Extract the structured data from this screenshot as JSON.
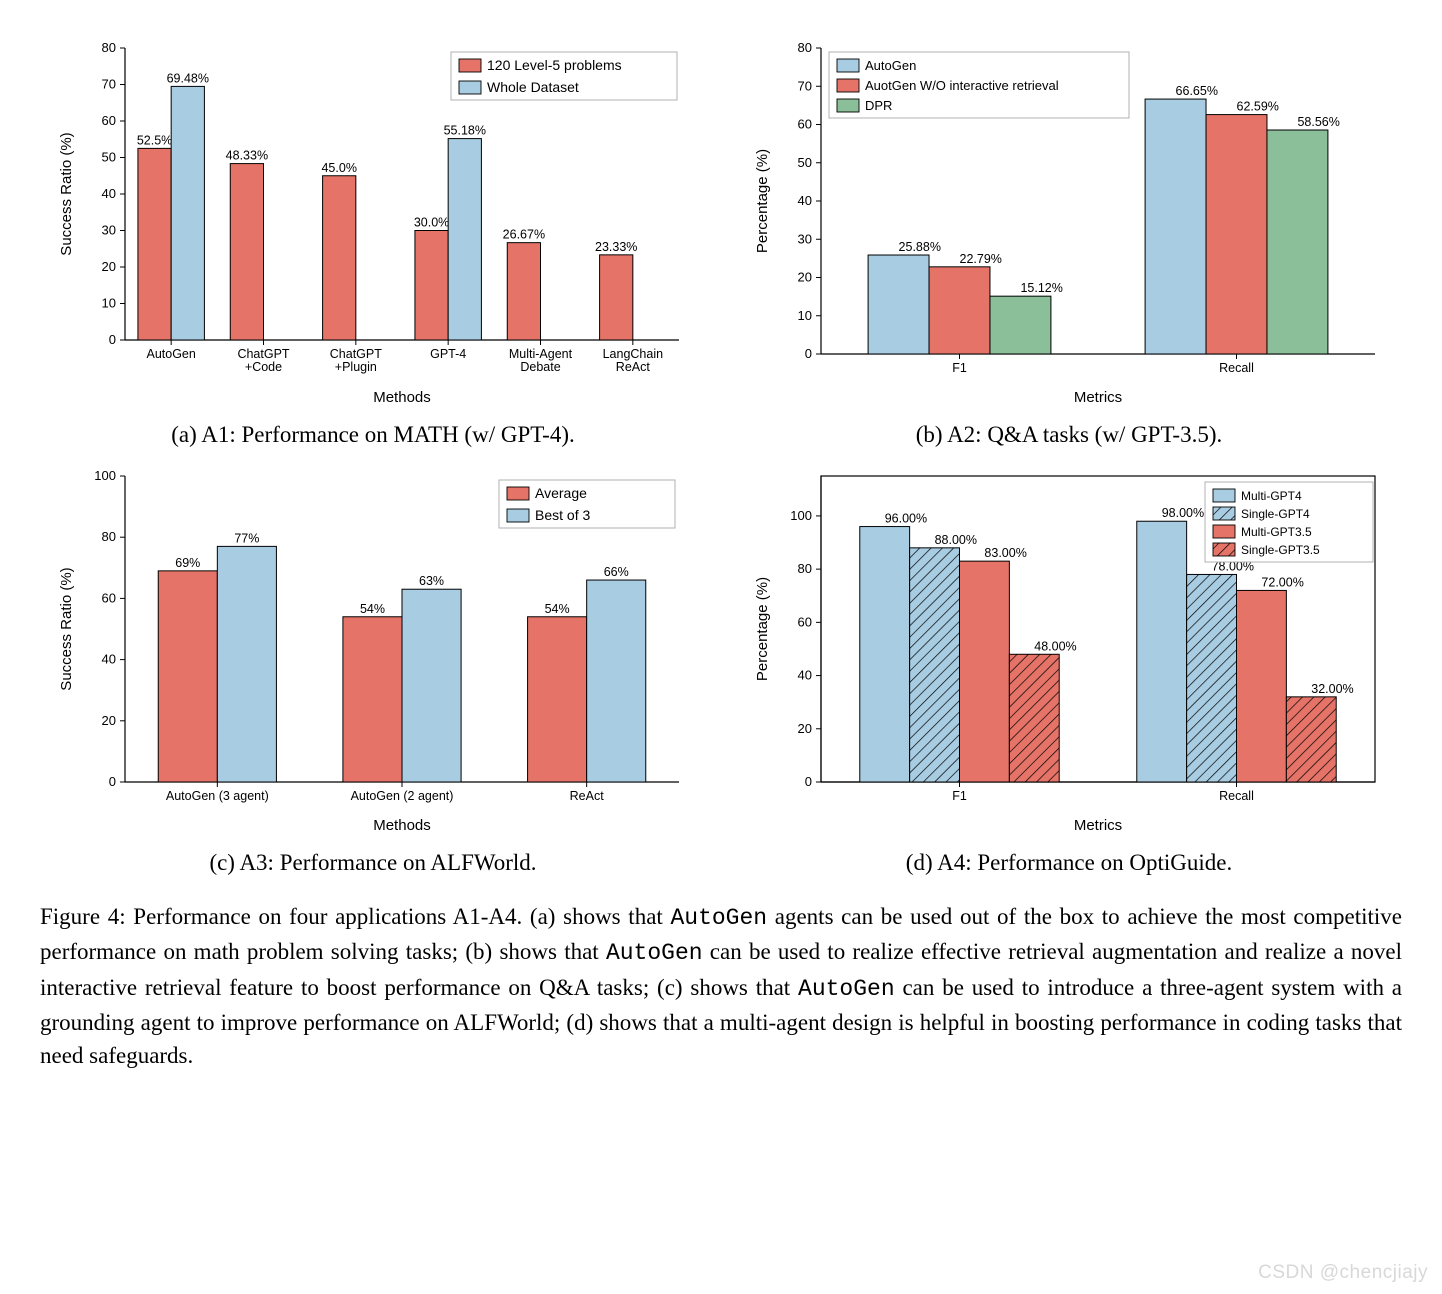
{
  "colors": {
    "red": "#e57368",
    "blue": "#a8cde2",
    "green": "#8bbf9a",
    "axis": "#000000",
    "text": "#000000"
  },
  "chartA": {
    "type": "bar",
    "xlabel": "Methods",
    "ylabel": "Success Ratio (%)",
    "ylim": [
      0,
      80
    ],
    "ytick_step": 10,
    "categories": [
      "AutoGen",
      "ChatGPT\n+Code",
      "ChatGPT\n+Plugin",
      "GPT-4",
      "Multi-Agent\nDebate",
      "LangChain\nReAct"
    ],
    "series": [
      {
        "name": "120 Level-5 problems",
        "color": "#e57368",
        "values": [
          52.5,
          48.33,
          45.0,
          30.0,
          26.67,
          23.33
        ],
        "labels": [
          "52.5%",
          "48.33%",
          "45.0%",
          "30.0%",
          "26.67%",
          "23.33%"
        ]
      },
      {
        "name": "Whole Dataset",
        "color": "#a8cde2",
        "values": [
          69.48,
          null,
          null,
          55.18,
          null,
          null
        ],
        "labels": [
          "69.48%",
          "",
          "",
          "55.18%",
          "",
          ""
        ]
      }
    ],
    "bar_width": 0.36,
    "label_fontsize": 12,
    "tick_fontsize": 11
  },
  "chartB": {
    "type": "bar",
    "xlabel": "Metrics",
    "ylabel": "Percentage (%)",
    "ylim": [
      0,
      80
    ],
    "ytick_step": 10,
    "categories": [
      "F1",
      "Recall"
    ],
    "series": [
      {
        "name": "AutoGen",
        "color": "#a8cde2",
        "values": [
          25.88,
          66.65
        ],
        "labels": [
          "25.88%",
          "66.65%"
        ]
      },
      {
        "name": "AuotGen W/O interactive retrieval",
        "color": "#e57368",
        "values": [
          22.79,
          62.59
        ],
        "labels": [
          "22.79%",
          "62.59%"
        ]
      },
      {
        "name": "DPR",
        "color": "#8bbf9a",
        "values": [
          15.12,
          58.56
        ],
        "labels": [
          "15.12%",
          "58.56%"
        ]
      }
    ],
    "bar_width": 0.22,
    "label_fontsize": 12
  },
  "chartC": {
    "type": "bar",
    "xlabel": "Methods",
    "ylabel": "Success Ratio (%)",
    "ylim": [
      0,
      100
    ],
    "ytick_step": 20,
    "categories": [
      "AutoGen (3 agent)",
      "AutoGen (2 agent)",
      "ReAct"
    ],
    "series": [
      {
        "name": "Average",
        "color": "#e57368",
        "values": [
          69,
          54,
          54
        ],
        "labels": [
          "69%",
          "54%",
          "54%"
        ]
      },
      {
        "name": "Best of 3",
        "color": "#a8cde2",
        "values": [
          77,
          63,
          66
        ],
        "labels": [
          "77%",
          "63%",
          "66%"
        ]
      }
    ],
    "bar_width": 0.32,
    "label_fontsize": 12
  },
  "chartD": {
    "type": "bar",
    "xlabel": "Metrics",
    "ylabel": "Percentage (%)",
    "ylim": [
      0,
      115
    ],
    "ytick_step": 20,
    "ytick_max": 100,
    "categories": [
      "F1",
      "Recall"
    ],
    "series": [
      {
        "name": "Multi-GPT4",
        "color": "#a8cde2",
        "hatch": false,
        "values": [
          96,
          98
        ],
        "labels": [
          "96.00%",
          "98.00%"
        ]
      },
      {
        "name": "Single-GPT4",
        "color": "#a8cde2",
        "hatch": true,
        "values": [
          88,
          78
        ],
        "labels": [
          "88.00%",
          "78.00%"
        ]
      },
      {
        "name": "Multi-GPT3.5",
        "color": "#e57368",
        "hatch": false,
        "values": [
          83,
          72
        ],
        "labels": [
          "83.00%",
          "72.00%"
        ]
      },
      {
        "name": "Single-GPT3.5",
        "color": "#e57368",
        "hatch": true,
        "values": [
          48,
          32
        ],
        "labels": [
          "48.00%",
          "32.00%"
        ]
      }
    ],
    "bar_width": 0.18,
    "label_fontsize": 12,
    "framed": true
  },
  "subcaptions": {
    "a": "(a) A1: Performance on MATH (w/ GPT-4).",
    "b": "(b) A2: Q&A tasks (w/ GPT-3.5).",
    "c": "(c) A3: Performance on ALFWorld.",
    "d": "(d) A4: Performance on OptiGuide."
  },
  "caption_label": "Figure 4:",
  "caption_parts": [
    "Performance on four applications A1-A4.  (a) shows that ",
    " agents can be used out of the box to achieve the most competitive performance on math problem solving tasks; (b) shows that ",
    " can be used to realize effective retrieval augmentation and realize a novel interactive retrieval feature to boost performance on Q&A tasks; (c) shows that ",
    " can be used to introduce a three-agent system with a grounding agent to improve performance on ALFWorld; (d) shows that a multi-agent design is helpful in boosting performance in coding tasks that need safeguards."
  ],
  "mono_token": "AutoGen",
  "watermark": "CSDN @chencjiajy"
}
